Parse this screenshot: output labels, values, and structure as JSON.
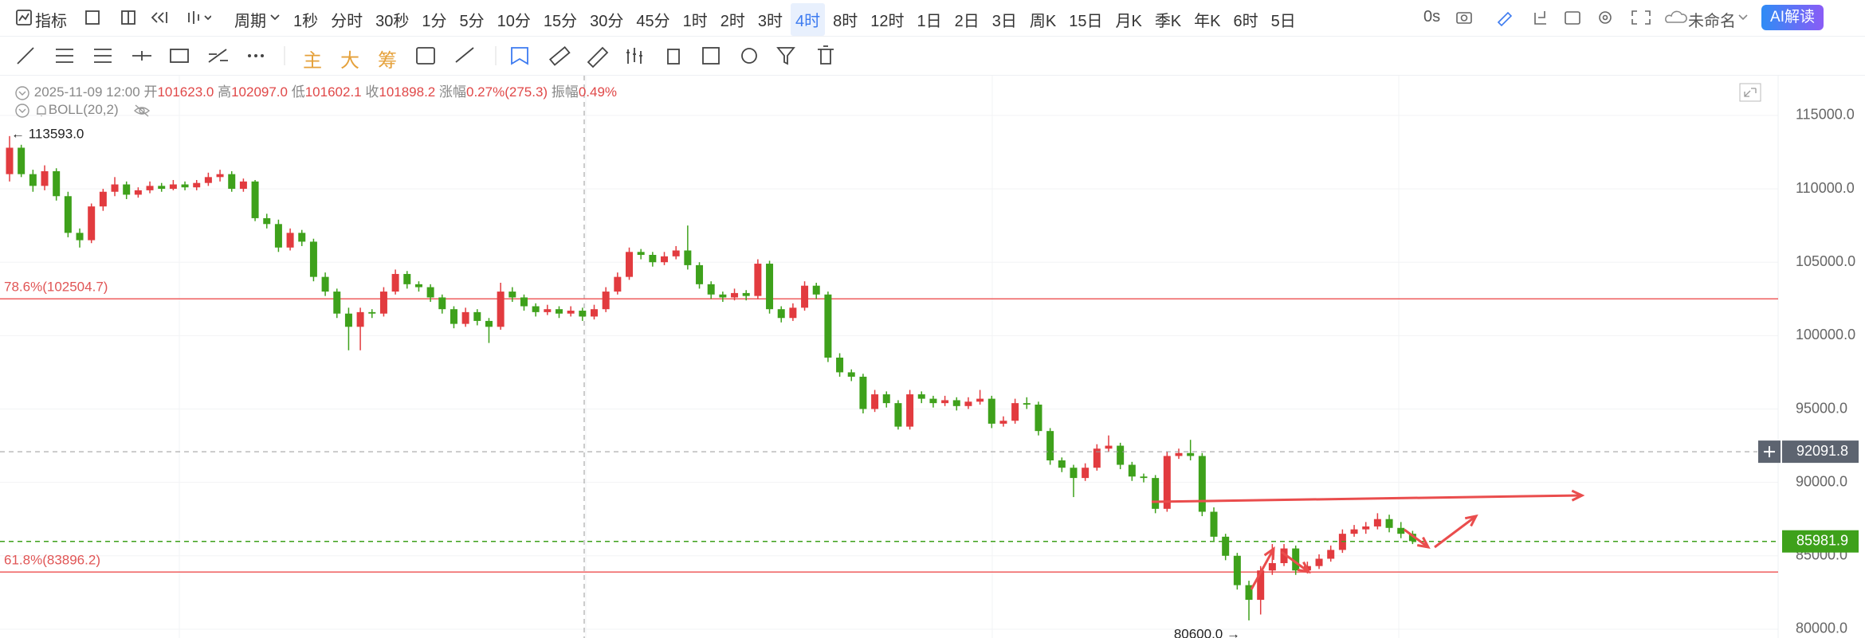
{
  "toolbar": {
    "indicator": "指标",
    "period": "周期",
    "periods": [
      "1秒",
      "分时",
      "30秒",
      "1分",
      "5分",
      "10分",
      "15分",
      "30分",
      "45分",
      "1时",
      "2时",
      "3时",
      "4时",
      "8时",
      "12时",
      "1日",
      "2日",
      "3日",
      "周K",
      "15日",
      "月K",
      "季K",
      "年K",
      "6时",
      "5日"
    ],
    "active_period": "4时",
    "timer": "0s",
    "layout_name": "未命名",
    "ai_button": "AI解读",
    "chart_modes": [
      "主",
      "大",
      "筹"
    ]
  },
  "info": {
    "time": "2025-11-09 12:00",
    "open_label": "开",
    "open": "101623.0",
    "high_label": "高",
    "high": "102097.0",
    "low_label": "低",
    "low": "101602.1",
    "close_label": "收",
    "close": "101898.2",
    "change_label": "涨幅",
    "change": "0.27%(275.3)",
    "amplitude_label": "振幅",
    "amplitude": "0.49%",
    "indicator": "BOLL(20,2)"
  },
  "chart_data": {
    "type": "candlestick",
    "colors": {
      "up": "#e23b3f",
      "down": "#3ea11b"
    },
    "ylim": [
      79400,
      117600
    ],
    "yticks": [
      {
        "value": 80000,
        "label": "80000.0"
      },
      {
        "value": 85000,
        "label": "85000.0"
      },
      {
        "value": 90000,
        "label": "90000.0"
      },
      {
        "value": 95000,
        "label": "95000.0"
      },
      {
        "value": 100000,
        "label": "100000.0"
      },
      {
        "value": 105000,
        "label": "105000.0"
      },
      {
        "value": 110000,
        "label": "110000.0"
      },
      {
        "value": 115000,
        "label": "115000.0"
      }
    ],
    "values": [
      [
        111000,
        113593,
        110500,
        112800
      ],
      [
        112800,
        113000,
        110800,
        111000
      ],
      [
        111000,
        111300,
        109800,
        110200
      ],
      [
        110200,
        111600,
        109900,
        111200
      ],
      [
        111200,
        111400,
        109200,
        109500
      ],
      [
        109500,
        109800,
        106700,
        107000
      ],
      [
        107000,
        107300,
        106000,
        106500
      ],
      [
        106500,
        109000,
        106300,
        108800
      ],
      [
        108800,
        110000,
        108500,
        109800
      ],
      [
        109800,
        110800,
        109500,
        110300
      ],
      [
        110300,
        110500,
        109300,
        109600
      ],
      [
        109600,
        110100,
        109400,
        109900
      ],
      [
        109900,
        110500,
        109700,
        110200
      ],
      [
        110200,
        110400,
        109800,
        110000
      ],
      [
        110000,
        110600,
        109900,
        110300
      ],
      [
        110300,
        110500,
        109900,
        110100
      ],
      [
        110100,
        110600,
        109900,
        110400
      ],
      [
        110400,
        111100,
        110200,
        110800
      ],
      [
        110800,
        111300,
        110500,
        111000
      ],
      [
        111000,
        111200,
        109800,
        110000
      ],
      [
        110000,
        110700,
        109800,
        110500
      ],
      [
        110500,
        110600,
        107800,
        108000
      ],
      [
        108000,
        108300,
        107300,
        107600
      ],
      [
        107600,
        107900,
        105700,
        106000
      ],
      [
        106000,
        107300,
        105800,
        107000
      ],
      [
        107000,
        107200,
        106100,
        106400
      ],
      [
        106400,
        106600,
        103700,
        104000
      ],
      [
        104000,
        104300,
        102700,
        103000
      ],
      [
        103000,
        103200,
        101200,
        101500
      ],
      [
        101500,
        101900,
        99000,
        100600
      ],
      [
        100600,
        101900,
        99000,
        101600
      ],
      [
        101600,
        101800,
        101200,
        101500
      ],
      [
        101500,
        103300,
        101300,
        103000
      ],
      [
        103000,
        104500,
        102800,
        104200
      ],
      [
        104200,
        104400,
        103200,
        103500
      ],
      [
        103500,
        103700,
        103000,
        103300
      ],
      [
        103300,
        103500,
        102300,
        102600
      ],
      [
        102600,
        102800,
        101500,
        101800
      ],
      [
        101800,
        102000,
        100500,
        100800
      ],
      [
        100800,
        101900,
        100600,
        101600
      ],
      [
        101600,
        101800,
        100700,
        101000
      ],
      [
        101000,
        101200,
        99500,
        100600
      ],
      [
        100600,
        103600,
        100400,
        103000
      ],
      [
        103000,
        103300,
        102300,
        102600
      ],
      [
        102600,
        102800,
        101700,
        102000
      ],
      [
        102000,
        102200,
        101300,
        101600
      ],
      [
        101600,
        102100,
        101400,
        101800
      ],
      [
        101800,
        102000,
        101200,
        101500
      ],
      [
        101500,
        102000,
        101300,
        101700
      ],
      [
        101700,
        101900,
        101000,
        101300
      ],
      [
        101300,
        102100,
        101100,
        101800
      ],
      [
        101800,
        103300,
        101600,
        103000
      ],
      [
        103000,
        104300,
        102800,
        104000
      ],
      [
        104000,
        106000,
        103800,
        105700
      ],
      [
        105700,
        105900,
        105200,
        105500
      ],
      [
        105500,
        105700,
        104700,
        105000
      ],
      [
        105000,
        105700,
        104800,
        105400
      ],
      [
        105400,
        106100,
        105200,
        105800
      ],
      [
        105800,
        107500,
        104500,
        104800
      ],
      [
        104800,
        105000,
        103200,
        103500
      ],
      [
        103500,
        103700,
        102500,
        102800
      ],
      [
        102800,
        103000,
        102300,
        102600
      ],
      [
        102600,
        103200,
        102400,
        102900
      ],
      [
        102900,
        103100,
        102400,
        102700
      ],
      [
        102700,
        105200,
        102500,
        104900
      ],
      [
        104900,
        105100,
        101500,
        101800
      ],
      [
        101800,
        102000,
        100900,
        101200
      ],
      [
        101200,
        102200,
        101000,
        101900
      ],
      [
        101900,
        103700,
        101700,
        103400
      ],
      [
        103400,
        103600,
        102500,
        102800
      ],
      [
        102800,
        103000,
        98200,
        98500
      ],
      [
        98500,
        98800,
        97200,
        97500
      ],
      [
        97500,
        97700,
        96900,
        97200
      ],
      [
        97200,
        97400,
        94700,
        95000
      ],
      [
        95000,
        96300,
        94800,
        96000
      ],
      [
        96000,
        96200,
        95100,
        95400
      ],
      [
        95400,
        95600,
        93600,
        93800
      ],
      [
        93800,
        96300,
        93600,
        96000
      ],
      [
        96000,
        96200,
        95400,
        95700
      ],
      [
        95700,
        95900,
        95100,
        95400
      ],
      [
        95400,
        95900,
        95200,
        95600
      ],
      [
        95600,
        95800,
        94900,
        95200
      ],
      [
        95200,
        95800,
        95000,
        95500
      ],
      [
        95500,
        96300,
        95300,
        95700
      ],
      [
        95700,
        95900,
        93700,
        94000
      ],
      [
        94000,
        94500,
        93800,
        94200
      ],
      [
        94200,
        95700,
        94000,
        95400
      ],
      [
        95400,
        95800,
        95000,
        95300
      ],
      [
        95300,
        95500,
        93200,
        93500
      ],
      [
        93500,
        93700,
        91200,
        91500
      ],
      [
        91500,
        91700,
        90700,
        91000
      ],
      [
        91000,
        91200,
        89000,
        90300
      ],
      [
        90300,
        91300,
        90100,
        91000
      ],
      [
        91000,
        92600,
        90800,
        92300
      ],
      [
        92300,
        93200,
        92100,
        92500
      ],
      [
        92500,
        92700,
        90900,
        91200
      ],
      [
        91200,
        91400,
        90100,
        90400
      ],
      [
        90400,
        90600,
        90000,
        90300
      ],
      [
        90300,
        90500,
        87900,
        88200
      ],
      [
        88200,
        92100,
        88000,
        91800
      ],
      [
        91800,
        92300,
        91600,
        92000
      ],
      [
        92000,
        92900,
        91500,
        91800
      ],
      [
        91800,
        92000,
        87700,
        88000
      ],
      [
        88000,
        88300,
        86000,
        86300
      ],
      [
        86300,
        86500,
        84700,
        85000
      ],
      [
        85000,
        85200,
        82700,
        83000
      ],
      [
        83000,
        83300,
        80600,
        82000
      ],
      [
        82000,
        84300,
        81000,
        84000
      ],
      [
        84000,
        85800,
        83700,
        84500
      ],
      [
        84500,
        85800,
        84300,
        85500
      ],
      [
        85500,
        85700,
        83700,
        84000
      ],
      [
        84000,
        84600,
        83800,
        84300
      ],
      [
        84300,
        85100,
        84100,
        84800
      ],
      [
        84800,
        85700,
        84600,
        85400
      ],
      [
        85400,
        86800,
        85200,
        86500
      ],
      [
        86500,
        87100,
        86300,
        86800
      ],
      [
        86800,
        87300,
        86500,
        87000
      ],
      [
        87000,
        87900,
        86800,
        87500
      ],
      [
        87500,
        87800,
        86600,
        86900
      ],
      [
        86900,
        87300,
        86200,
        86500
      ],
      [
        86500,
        86700,
        85800,
        86000
      ]
    ],
    "fib_levels": [
      {
        "value": 102504.7,
        "label": "78.6%(102504.7)"
      },
      {
        "value": 83896.2,
        "label": "61.8%(83896.2)"
      }
    ],
    "crosshair": {
      "value": 92091.8,
      "label": "92091.8"
    },
    "last_price": {
      "value": 85981.9,
      "label": "85981.9"
    },
    "annotations": [
      {
        "value": 113593,
        "label": "← 113593.0"
      },
      {
        "value": 80600,
        "label": "80600.0 →"
      }
    ]
  }
}
